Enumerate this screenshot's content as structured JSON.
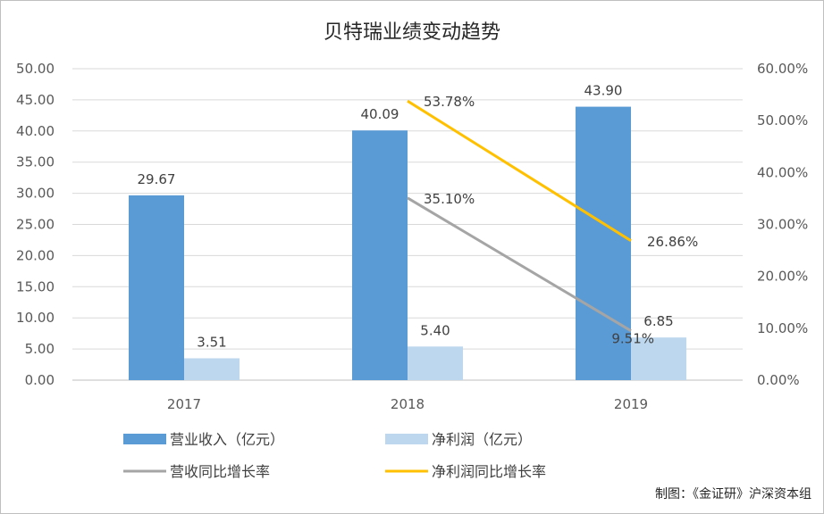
{
  "chart_data": {
    "type": "bar",
    "title": "贝特瑞业绩变动趋势",
    "categories": [
      "2017",
      "2018",
      "2019"
    ],
    "y_left": {
      "min": 0,
      "max": 50,
      "step": 5,
      "tick_labels": [
        "0.00",
        "5.00",
        "10.00",
        "15.00",
        "20.00",
        "25.00",
        "30.00",
        "35.00",
        "40.00",
        "45.00",
        "50.00"
      ]
    },
    "y_right": {
      "min": 0,
      "max": 60,
      "step": 10,
      "tick_labels": [
        "0.00%",
        "10.00%",
        "20.00%",
        "30.00%",
        "40.00%",
        "50.00%",
        "60.00%"
      ]
    },
    "grid": true,
    "legend_position": "bottom",
    "series": [
      {
        "name": "营业收入（亿元）",
        "kind": "bar",
        "axis": "left",
        "color": "#5b9bd5",
        "values": [
          29.67,
          40.09,
          43.9
        ],
        "labels": [
          "29.67",
          "40.09",
          "43.90"
        ]
      },
      {
        "name": "净利润（亿元）",
        "kind": "bar",
        "axis": "left",
        "color": "#bdd7ee",
        "values": [
          3.51,
          5.4,
          6.85
        ],
        "labels": [
          "3.51",
          "5.40",
          "6.85"
        ]
      },
      {
        "name": "营收同比增长率",
        "kind": "line",
        "axis": "right",
        "color": "#a5a5a5",
        "values": [
          null,
          35.1,
          9.51
        ],
        "labels": [
          "",
          "35.10%",
          "9.51%"
        ]
      },
      {
        "name": "净利润同比增长率",
        "kind": "line",
        "axis": "right",
        "color": "#ffc000",
        "values": [
          null,
          53.78,
          26.86
        ],
        "labels": [
          "",
          "53.78%",
          "26.86%"
        ]
      }
    ],
    "annotation": "制图：《金证研》沪深资本组"
  }
}
